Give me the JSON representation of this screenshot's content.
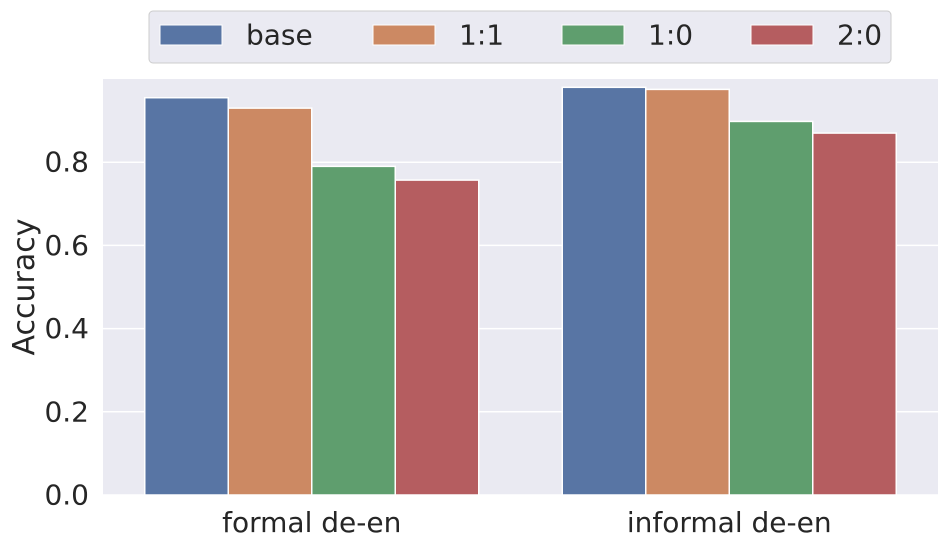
{
  "chart_data": {
    "type": "bar",
    "categories": [
      "formal de-en",
      "informal de-en"
    ],
    "series": [
      {
        "name": "base",
        "values": [
          0.955,
          0.98
        ],
        "color": "#5875a4"
      },
      {
        "name": "1:1",
        "values": [
          0.93,
          0.975
        ],
        "color": "#cc8963"
      },
      {
        "name": "1:0",
        "values": [
          0.79,
          0.898
        ],
        "color": "#5f9e6e"
      },
      {
        "name": "2:0",
        "values": [
          0.757,
          0.87
        ],
        "color": "#b55d60"
      }
    ],
    "ylabel": "Accuracy",
    "xlabel": "",
    "yticks": [
      "0.0",
      "0.2",
      "0.4",
      "0.6",
      "0.8"
    ],
    "ylim": [
      0,
      1.0
    ],
    "grid": true,
    "legend_position": "top",
    "background_color": "#eaeaf2",
    "grid_color": "#ffffff"
  }
}
